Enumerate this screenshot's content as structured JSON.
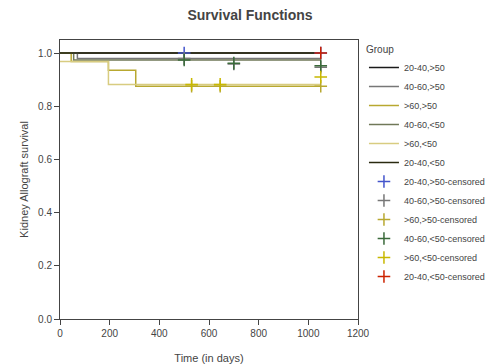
{
  "chart_data": {
    "type": "step",
    "title": "Survival Functions",
    "xlabel": "Time (in days)",
    "ylabel": "Kidney Allograft survival",
    "legend_title": "Group",
    "legend": "right",
    "grid": false,
    "xlim": [
      0,
      1200
    ],
    "ylim": [
      0.0,
      1.049
    ],
    "xticks": [
      0,
      200,
      400,
      600,
      800,
      1000,
      1200
    ],
    "yticks": [
      {
        "value": 0.0,
        "label": "0.0"
      },
      0.2,
      0.4,
      0.6,
      0.8,
      {
        "value": 1.0,
        "label": "1.0"
      }
    ],
    "series": [
      {
        "name": "20-40,>50",
        "color": "#1a1a1a",
        "x": [
          0,
          1050
        ],
        "values": [
          1.0,
          1.0
        ]
      },
      {
        "name": "40-60,>50",
        "color": "#777777",
        "x": [
          0,
          70,
          70,
          1050
        ],
        "values": [
          1.0,
          1.0,
          0.979,
          0.979
        ]
      },
      {
        "name": ">60,>50",
        "color": "#b8a830",
        "x": [
          0,
          45,
          45,
          195,
          195,
          305,
          305,
          1050
        ],
        "values": [
          1.0,
          1.0,
          0.968,
          0.968,
          0.935,
          0.935,
          0.875,
          0.875
        ]
      },
      {
        "name": "40-60,<50",
        "color": "#707858",
        "x": [
          0,
          55,
          55,
          1050
        ],
        "values": [
          1.0,
          1.0,
          0.974,
          0.974
        ]
      },
      {
        "name": ">60,<50",
        "color": "#d8cc80",
        "x": [
          0,
          195,
          195,
          305,
          305,
          1050
        ],
        "values": [
          0.968,
          0.968,
          0.882,
          0.882,
          0.882,
          0.882
        ]
      },
      {
        "name": "20-40,<50",
        "color": "#2a2a10",
        "x": [
          0,
          1050
        ],
        "values": [
          1.0,
          1.0
        ]
      },
      {
        "name": "20-40,>50-censored",
        "type": "scatter",
        "marker": "plus",
        "color": "#4455cc",
        "x": [
          500,
          1050
        ],
        "values": [
          1.0,
          1.0
        ]
      },
      {
        "name": "40-60,>50-censored",
        "type": "scatter",
        "marker": "plus",
        "color": "#777777",
        "x": [
          500,
          700,
          1050
        ],
        "values": [
          0.979,
          0.959,
          0.947
        ]
      },
      {
        "name": ">60,>50-censored",
        "type": "scatter",
        "marker": "plus",
        "color": "#b8a830",
        "x": [
          530,
          645,
          1050
        ],
        "values": [
          0.875,
          0.875,
          0.875
        ]
      },
      {
        "name": "40-60,<50-censored",
        "type": "scatter",
        "marker": "plus",
        "color": "#3a6a3a",
        "x": [
          500,
          700,
          1050
        ],
        "values": [
          0.974,
          0.962,
          0.952
        ]
      },
      {
        "name": ">60,<50-censored",
        "type": "scatter",
        "marker": "plus",
        "color": "#c8b800",
        "x": [
          530,
          645,
          1050
        ],
        "values": [
          0.882,
          0.882,
          0.91
        ]
      },
      {
        "name": "20-40,<50-censored",
        "type": "scatter",
        "marker": "plus",
        "color": "#cc2200",
        "x": [
          1050
        ],
        "values": [
          1.0
        ]
      }
    ]
  }
}
